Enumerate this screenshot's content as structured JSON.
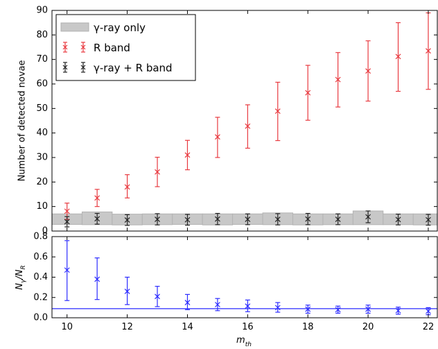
{
  "chart_data": [
    {
      "type": "scatter",
      "panel": "top",
      "xlabel": "",
      "ylabel": "Number of detected novae",
      "xlim": [
        9.5,
        22.3
      ],
      "ylim": [
        0,
        90
      ],
      "yticks": [
        0,
        10,
        20,
        30,
        40,
        50,
        60,
        70,
        80,
        90
      ],
      "grid": false,
      "legend": {
        "placement": "top-left",
        "entries": [
          {
            "label": "γ-ray only",
            "marker": "band",
            "color": "#c8c8c8"
          },
          {
            "label": "R band",
            "marker": "errorbar",
            "color": "#e8393f"
          },
          {
            "label": "γ-ray + R band",
            "marker": "errorbar",
            "color": "#222222"
          }
        ]
      },
      "x": [
        10,
        11,
        12,
        13,
        14,
        15,
        16,
        17,
        18,
        19,
        20,
        21,
        22
      ],
      "series": [
        {
          "name": "γ-ray only",
          "kind": "band",
          "color": "#c8c8c8",
          "lower": [
            2.7,
            2.6,
            2.5,
            2.6,
            2.7,
            2.5,
            2.7,
            2.6,
            2.5,
            2.6,
            2.6,
            2.6,
            2.5
          ],
          "upper": [
            7.0,
            7.8,
            6.9,
            7.0,
            7.0,
            7.0,
            7.0,
            7.4,
            7.0,
            7.0,
            8.2,
            7.0,
            7.0
          ]
        },
        {
          "name": "R band",
          "kind": "errorbar",
          "color": "#e8393f",
          "values": [
            8.1,
            13.5,
            18.0,
            24.1,
            31.0,
            38.4,
            42.8,
            48.9,
            56.4,
            61.8,
            65.3,
            71.2,
            73.5
          ],
          "err_low": [
            3.3,
            3.5,
            4.5,
            6.0,
            6.0,
            8.4,
            9.0,
            12.0,
            11.2,
            11.2,
            12.3,
            14.2,
            15.7
          ],
          "err_high": [
            3.3,
            3.5,
            5.0,
            6.0,
            6.0,
            8.0,
            8.7,
            11.8,
            11.2,
            11.0,
            12.3,
            13.8,
            15.5
          ]
        },
        {
          "name": "γ-ray + R band",
          "kind": "errorbar",
          "color": "#222222",
          "values": [
            3.8,
            5.0,
            4.5,
            4.8,
            4.6,
            4.9,
            4.8,
            4.8,
            4.9,
            4.8,
            5.8,
            4.7,
            4.6
          ],
          "err_low": [
            2.1,
            2.2,
            2.2,
            2.3,
            2.2,
            2.3,
            2.2,
            2.3,
            2.3,
            2.2,
            2.4,
            2.2,
            2.2
          ],
          "err_high": [
            2.1,
            2.2,
            2.2,
            2.3,
            2.2,
            2.3,
            2.2,
            2.3,
            2.3,
            2.2,
            2.4,
            2.2,
            2.2
          ]
        }
      ]
    },
    {
      "type": "scatter",
      "panel": "bottom",
      "xlabel": "m_th",
      "ylabel": "N_γ/N_R",
      "xlim": [
        9.5,
        22.3
      ],
      "ylim": [
        0,
        0.8
      ],
      "xticks": [
        10,
        12,
        14,
        16,
        18,
        20,
        22
      ],
      "yticks": [
        0.0,
        0.2,
        0.4,
        0.6,
        0.8
      ],
      "ytick_labels": [
        "0.0",
        "0.2",
        "0.4",
        "0.6",
        "0.8"
      ],
      "grid": false,
      "hline": {
        "y": 0.09,
        "color": "#2b2bff"
      },
      "x": [
        10,
        11,
        12,
        13,
        14,
        15,
        16,
        17,
        18,
        19,
        20,
        21,
        22
      ],
      "series": [
        {
          "kind": "errorbar",
          "color": "#2b2bff",
          "values": [
            0.47,
            0.38,
            0.26,
            0.21,
            0.15,
            0.13,
            0.115,
            0.1,
            0.085,
            0.08,
            0.085,
            0.07,
            0.065
          ],
          "err_low": [
            0.3,
            0.2,
            0.13,
            0.1,
            0.07,
            0.06,
            0.055,
            0.045,
            0.04,
            0.035,
            0.04,
            0.035,
            0.035
          ],
          "err_high": [
            0.29,
            0.21,
            0.14,
            0.1,
            0.08,
            0.06,
            0.06,
            0.05,
            0.04,
            0.035,
            0.04,
            0.035,
            0.035
          ]
        }
      ]
    }
  ]
}
